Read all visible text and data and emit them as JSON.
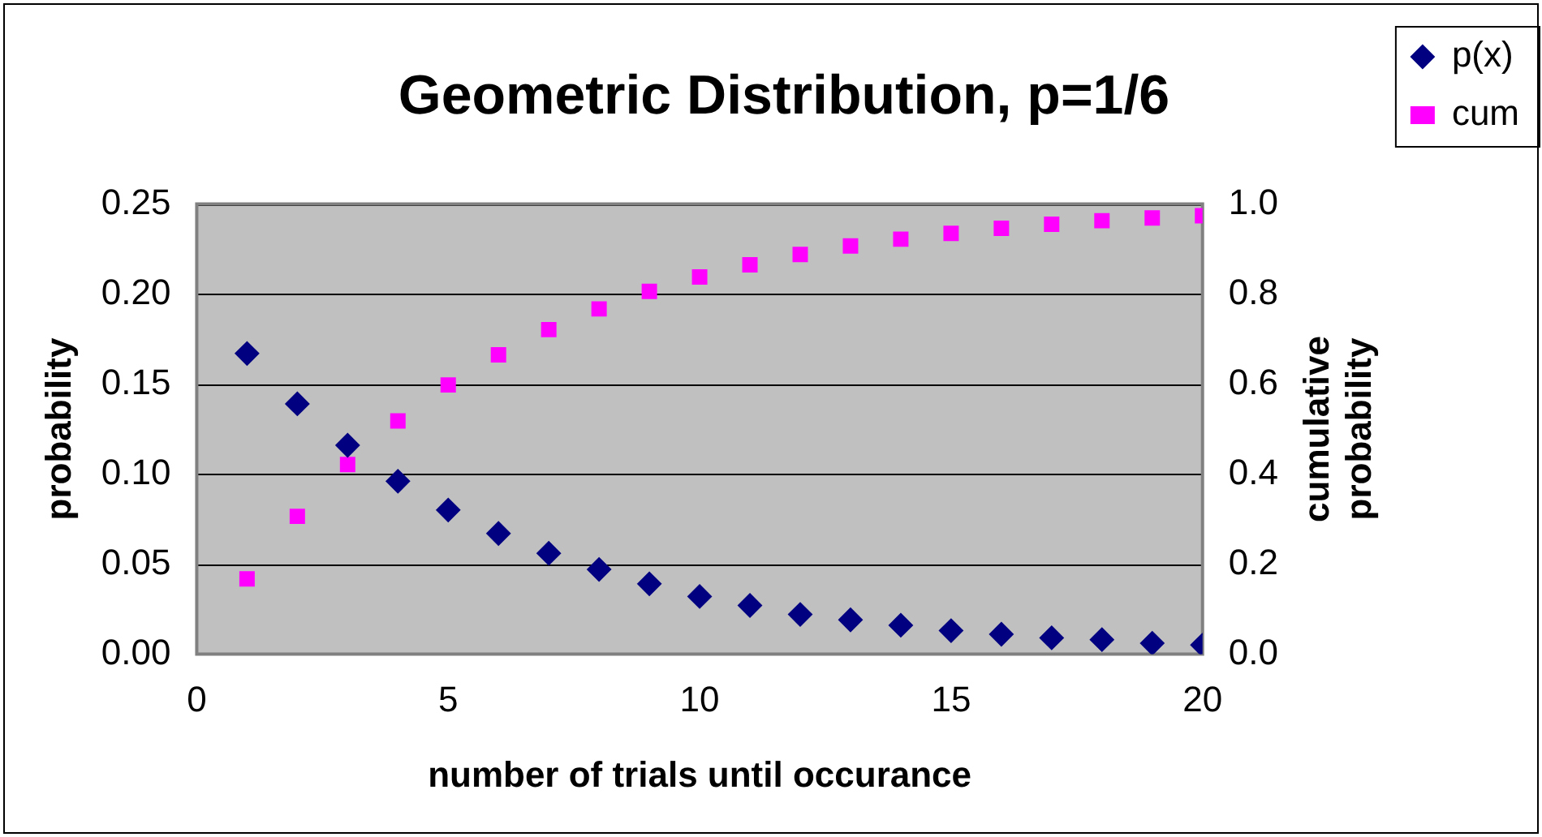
{
  "chart_data": {
    "type": "scatter",
    "title": "Geometric Distribution, p=1/6",
    "xlabel": "number of trials until occurance",
    "ylabel": "probability",
    "y2label": "cumulative probability",
    "x": [
      1,
      2,
      3,
      4,
      5,
      6,
      7,
      8,
      9,
      10,
      11,
      12,
      13,
      14,
      15,
      16,
      17,
      18,
      19,
      20
    ],
    "series": [
      {
        "name": "p(x)",
        "color": "#000080",
        "marker": "diamond",
        "values": [
          0.167,
          0.139,
          0.116,
          0.096,
          0.08,
          0.067,
          0.056,
          0.047,
          0.039,
          0.032,
          0.027,
          0.022,
          0.019,
          0.016,
          0.013,
          0.011,
          0.009,
          0.008,
          0.006,
          0.005
        ]
      },
      {
        "name": "cum",
        "color": "#ff00ff",
        "marker": "square",
        "axis": "y2",
        "values": [
          0.167,
          0.306,
          0.421,
          0.518,
          0.598,
          0.665,
          0.721,
          0.767,
          0.806,
          0.838,
          0.865,
          0.888,
          0.907,
          0.922,
          0.935,
          0.946,
          0.955,
          0.963,
          0.969,
          0.974
        ]
      }
    ],
    "xlim": [
      0,
      20
    ],
    "xticks": [
      0,
      5,
      10,
      15,
      20
    ],
    "ylim": [
      0,
      0.25
    ],
    "yticks": [
      {
        "value": 0,
        "label": "0.00"
      },
      {
        "value": 0.05,
        "label": "0.05"
      },
      {
        "value": 0.1,
        "label": "0.10"
      },
      {
        "value": 0.15,
        "label": "0.15"
      },
      {
        "value": 0.2,
        "label": "0.20"
      },
      {
        "value": 0.25,
        "label": "0.25"
      }
    ],
    "y2lim": [
      0,
      1
    ],
    "y2ticks": [
      {
        "value": 0,
        "label": "0.0"
      },
      {
        "value": 0.2,
        "label": "0.2"
      },
      {
        "value": 0.4,
        "label": "0.4"
      },
      {
        "value": 0.6,
        "label": "0.6"
      },
      {
        "value": 0.8,
        "label": "0.8"
      },
      {
        "value": 1,
        "label": "1.0"
      }
    ],
    "grid": "y",
    "legend": "top right"
  }
}
